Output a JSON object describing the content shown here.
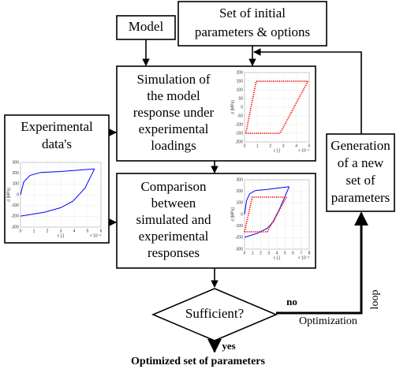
{
  "nodes": [
    {
      "label": [
        "Model"
      ]
    },
    {
      "label": [
        "Set of initial",
        "parameters & options"
      ]
    },
    {
      "label": [
        "Simulation of",
        "the model",
        "response under",
        "experimental",
        "loadings"
      ]
    },
    {
      "label": [
        "Experimental",
        "data's"
      ]
    },
    {
      "label": [
        "Comparison",
        "between",
        "simulated and",
        "experimental",
        "responses"
      ]
    },
    {
      "label": [
        "Generation",
        "of a new",
        "set of",
        "parameters"
      ]
    },
    {
      "label": [
        "Sufficient?"
      ]
    }
  ],
  "edges": {
    "no": "no",
    "yes": "yes",
    "optimization": "Optimization",
    "loop": "loop"
  },
  "output": "Optimized set of parameters",
  "plots": [
    {
      "ylabel": "σ [MPa]",
      "xlabel": "ε [-]",
      "xexp": "× 10⁻³",
      "yticks": [
        "200",
        "150",
        "100",
        "50",
        "0",
        "-50",
        "-100",
        "-150",
        "-200"
      ],
      "xticks": [
        "0",
        "1",
        "2",
        "3",
        "4",
        "5"
      ]
    },
    {
      "ylabel": "σ [MPa]",
      "xlabel": "ε [-]",
      "xexp": "× 10⁻³",
      "yticks": [
        "300",
        "200",
        "100",
        "0",
        "-100",
        "-200",
        "-300"
      ],
      "xticks": [
        "0",
        "1",
        "2",
        "3",
        "4",
        "5",
        "6"
      ]
    },
    {
      "ylabel": "σ [MPa]",
      "xlabel": "ε [-]",
      "xexp": "× 10⁻³",
      "yticks": [
        "300",
        "200",
        "100",
        "0",
        "-100",
        "-200",
        "-300"
      ],
      "xticks": [
        "0",
        "1",
        "2",
        "3",
        "4",
        "5",
        "6",
        "7",
        "8"
      ]
    }
  ]
}
